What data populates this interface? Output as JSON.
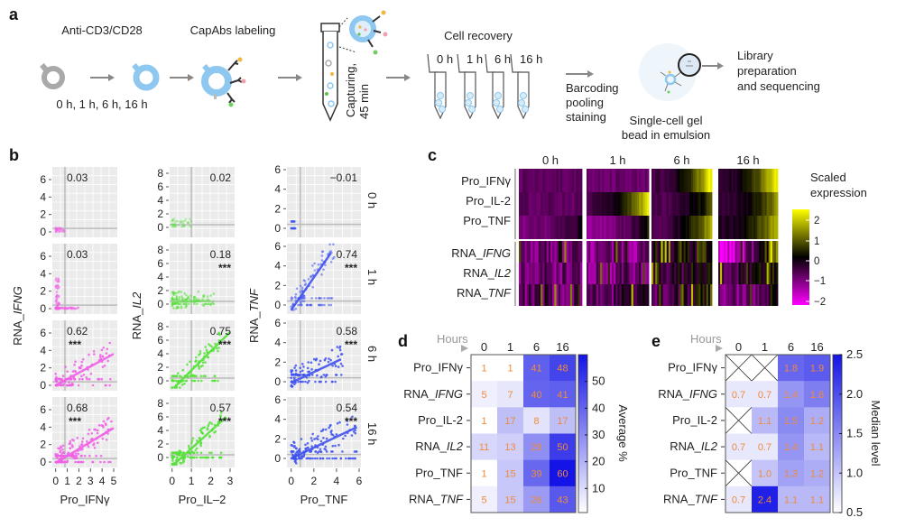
{
  "panel_a": {
    "letter": "a",
    "step1": "Anti-CD3/CD28",
    "timepoints": "0 h, 1 h, 6 h, 16 h",
    "step2": "CapAbs labeling",
    "capturing": [
      "Capturing,",
      "45 min"
    ],
    "recovery": "Cell recovery",
    "tube_labels": [
      "0 h",
      "1 h",
      "6 h",
      "16 h"
    ],
    "barcoding": [
      "Barcoding",
      "pooling",
      "staining"
    ],
    "gem": [
      "Single-cell gel",
      "bead in emulsion"
    ],
    "library": [
      "Library",
      "preparation",
      "and sequencing"
    ],
    "colors": {
      "resting_cell": "#a9a9a9",
      "activated_cell": "#8ec8f0",
      "arrow": "#888888"
    }
  },
  "panel_b": {
    "letter": "b",
    "rows": [
      "0 h",
      "1 h",
      "6 h",
      "16 h"
    ],
    "columns": [
      {
        "xlabel": "Pro_IFNγ",
        "ylabel": {
          "pre": "RNA_",
          "it": "IFNG"
        },
        "color": "#f060e6",
        "xticks": [
          "0",
          "1",
          "2",
          "3",
          "4",
          "5"
        ],
        "yticks": [
          "0",
          "2",
          "4",
          "6"
        ],
        "xlim": [
          0,
          5
        ],
        "ylim": [
          0,
          7
        ],
        "r": [
          "0.03",
          "0.03",
          "0.62",
          "0.68"
        ],
        "stars": [
          "",
          "",
          "***",
          "***"
        ]
      },
      {
        "xlabel": "Pro_IL–2",
        "ylabel": {
          "pre": "RNA_",
          "it": "IL2"
        },
        "color": "#56e03a",
        "xticks": [
          "0",
          "1",
          "2",
          "3"
        ],
        "yticks": [
          "0",
          "2",
          "4",
          "6",
          "8"
        ],
        "xlim": [
          0,
          3
        ],
        "ylim": [
          -1,
          8.5
        ],
        "r": [
          "0.02",
          "0.18",
          "0.75",
          "0.57"
        ],
        "stars": [
          "",
          "***",
          "***",
          "***"
        ]
      },
      {
        "xlabel": "Pro_TNF",
        "ylabel": {
          "pre": "RNA_",
          "it": "TNF"
        },
        "color": "#3f52ee",
        "xticks": [
          "0",
          "2",
          "4",
          "6"
        ],
        "yticks": [
          "0",
          "2",
          "4",
          "6"
        ],
        "xlim": [
          0,
          6
        ],
        "ylim": [
          -0.5,
          6.5
        ],
        "r": [
          "−0.01",
          "0.74",
          "0.58",
          "0.54"
        ],
        "stars": [
          "",
          "***",
          "***",
          "***"
        ]
      }
    ]
  },
  "panel_c": {
    "letter": "c",
    "columns": [
      "0 h",
      "1 h",
      "6 h",
      "16 h"
    ],
    "rows": [
      {
        "pre": "Pro_IFNγ",
        "it": ""
      },
      {
        "pre": "Pro_IL-2",
        "it": ""
      },
      {
        "pre": "Pro_TNF",
        "it": ""
      },
      {
        "pre": "RNA_",
        "it": "IFNG"
      },
      {
        "pre": "RNA_",
        "it": "IL2"
      },
      {
        "pre": "RNA_",
        "it": "TNF"
      }
    ],
    "legend_title": [
      "Scaled",
      "expression"
    ],
    "legend_ticks": [
      "2",
      "1",
      "0",
      "−1",
      "−2"
    ],
    "colorscale": [
      "#ff00ff",
      "#000000",
      "#ffff00"
    ]
  },
  "chart_data": [
    {
      "panel": "d",
      "type": "heatmap",
      "xlabel": "Hours",
      "x": [
        "0",
        "1",
        "6",
        "16"
      ],
      "rows": [
        {
          "pre": "Pro_IFNγ",
          "it": ""
        },
        {
          "pre": "RNA_",
          "it": "IFNG"
        },
        {
          "pre": "Pro_IL-2",
          "it": ""
        },
        {
          "pre": "RNA_",
          "it": "IL2"
        },
        {
          "pre": "Pro_TNF",
          "it": ""
        },
        {
          "pre": "RNA_",
          "it": "TNF"
        }
      ],
      "values": [
        [
          1,
          1,
          41,
          48
        ],
        [
          5,
          7,
          40,
          41
        ],
        [
          1,
          17,
          8,
          17
        ],
        [
          11,
          13,
          29,
          50
        ],
        [
          1,
          15,
          39,
          60
        ],
        [
          5,
          15,
          26,
          43
        ]
      ],
      "colorbar_label": "Average %",
      "colorbar_ticks": [
        "10",
        "20",
        "30",
        "40",
        "50"
      ],
      "colorbar_range": [
        1,
        60
      ],
      "colors": {
        "low": "#ffffff",
        "high": "#1414e6",
        "value_text": "#f08a3a"
      }
    },
    {
      "panel": "e",
      "type": "heatmap",
      "xlabel": "Hours",
      "x": [
        "0",
        "1",
        "6",
        "16"
      ],
      "rows": [
        {
          "pre": "Pro_IFNγ",
          "it": ""
        },
        {
          "pre": "RNA_",
          "it": "IFNG"
        },
        {
          "pre": "Pro_IL-2",
          "it": ""
        },
        {
          "pre": "RNA_",
          "it": "IL2"
        },
        {
          "pre": "Pro_TNF",
          "it": ""
        },
        {
          "pre": "RNA_",
          "it": "TNF"
        }
      ],
      "values": [
        [
          null,
          null,
          "1.8",
          "1.9"
        ],
        [
          "0.7",
          "0.7",
          "1.4",
          "1.6"
        ],
        [
          null,
          "1.1",
          "1.5",
          "1.2"
        ],
        [
          "0.7",
          "0.7",
          "1.4",
          "1.1"
        ],
        [
          null,
          "1.0",
          "1.3",
          "1.2"
        ],
        [
          "0.7",
          "2.4",
          "1.1",
          "1.1"
        ]
      ],
      "colorbar_label": "Median level",
      "colorbar_ticks": [
        "0.5",
        "1.0",
        "1.5",
        "2.0",
        "2.5"
      ],
      "colorbar_range": [
        0.5,
        2.5
      ],
      "colors": {
        "low": "#ffffff",
        "high": "#1414e6",
        "value_text": "#f08a3a"
      }
    }
  ]
}
